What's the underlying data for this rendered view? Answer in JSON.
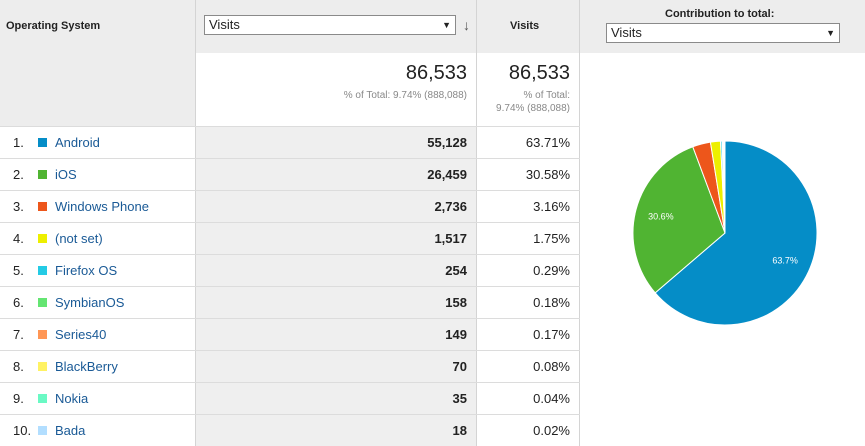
{
  "header": {
    "os_label": "Operating System",
    "metric_select": "Visits",
    "visits_label": "Visits",
    "contribution_label": "Contribution to total:",
    "contribution_select": "Visits"
  },
  "totals": {
    "main_value": "86,533",
    "main_note": "% of Total: 9.74% (888,088)",
    "visits_value": "86,533",
    "visits_note_1": "% of Total:",
    "visits_note_2": "9.74% (888,088)"
  },
  "rows": [
    {
      "num": "1.",
      "label": "Android",
      "value": "55,128",
      "pct": "63.71%",
      "color": "#058dc7"
    },
    {
      "num": "2.",
      "label": "iOS",
      "value": "26,459",
      "pct": "30.58%",
      "color": "#50b432"
    },
    {
      "num": "3.",
      "label": "Windows Phone",
      "value": "2,736",
      "pct": "3.16%",
      "color": "#ed561b"
    },
    {
      "num": "4.",
      "label": "(not set)",
      "value": "1,517",
      "pct": "1.75%",
      "color": "#edef00"
    },
    {
      "num": "5.",
      "label": "Firefox OS",
      "value": "254",
      "pct": "0.29%",
      "color": "#24cbe5"
    },
    {
      "num": "6.",
      "label": "SymbianOS",
      "value": "158",
      "pct": "0.18%",
      "color": "#64e572"
    },
    {
      "num": "7.",
      "label": "Series40",
      "value": "149",
      "pct": "0.17%",
      "color": "#ff9655"
    },
    {
      "num": "8.",
      "label": "BlackBerry",
      "value": "70",
      "pct": "0.08%",
      "color": "#fff263"
    },
    {
      "num": "9.",
      "label": "Nokia",
      "value": "35",
      "pct": "0.04%",
      "color": "#6af9c4"
    },
    {
      "num": "10.",
      "label": "Bada",
      "value": "18",
      "pct": "0.02%",
      "color": "#b2deff"
    }
  ],
  "chart_data": {
    "type": "pie",
    "categories": [
      "Android",
      "iOS",
      "Windows Phone",
      "(not set)",
      "Firefox OS",
      "SymbianOS",
      "Series40",
      "BlackBerry",
      "Nokia",
      "Bada"
    ],
    "values": [
      63.71,
      30.58,
      3.16,
      1.75,
      0.29,
      0.18,
      0.17,
      0.08,
      0.04,
      0.02
    ],
    "colors": [
      "#058dc7",
      "#50b432",
      "#ed561b",
      "#edef00",
      "#24cbe5",
      "#64e572",
      "#ff9655",
      "#fff263",
      "#6af9c4",
      "#b2deff"
    ],
    "labels": [
      "63.7%",
      "30.6%",
      "",
      "",
      "",
      "",
      "",
      "",
      "",
      ""
    ]
  }
}
